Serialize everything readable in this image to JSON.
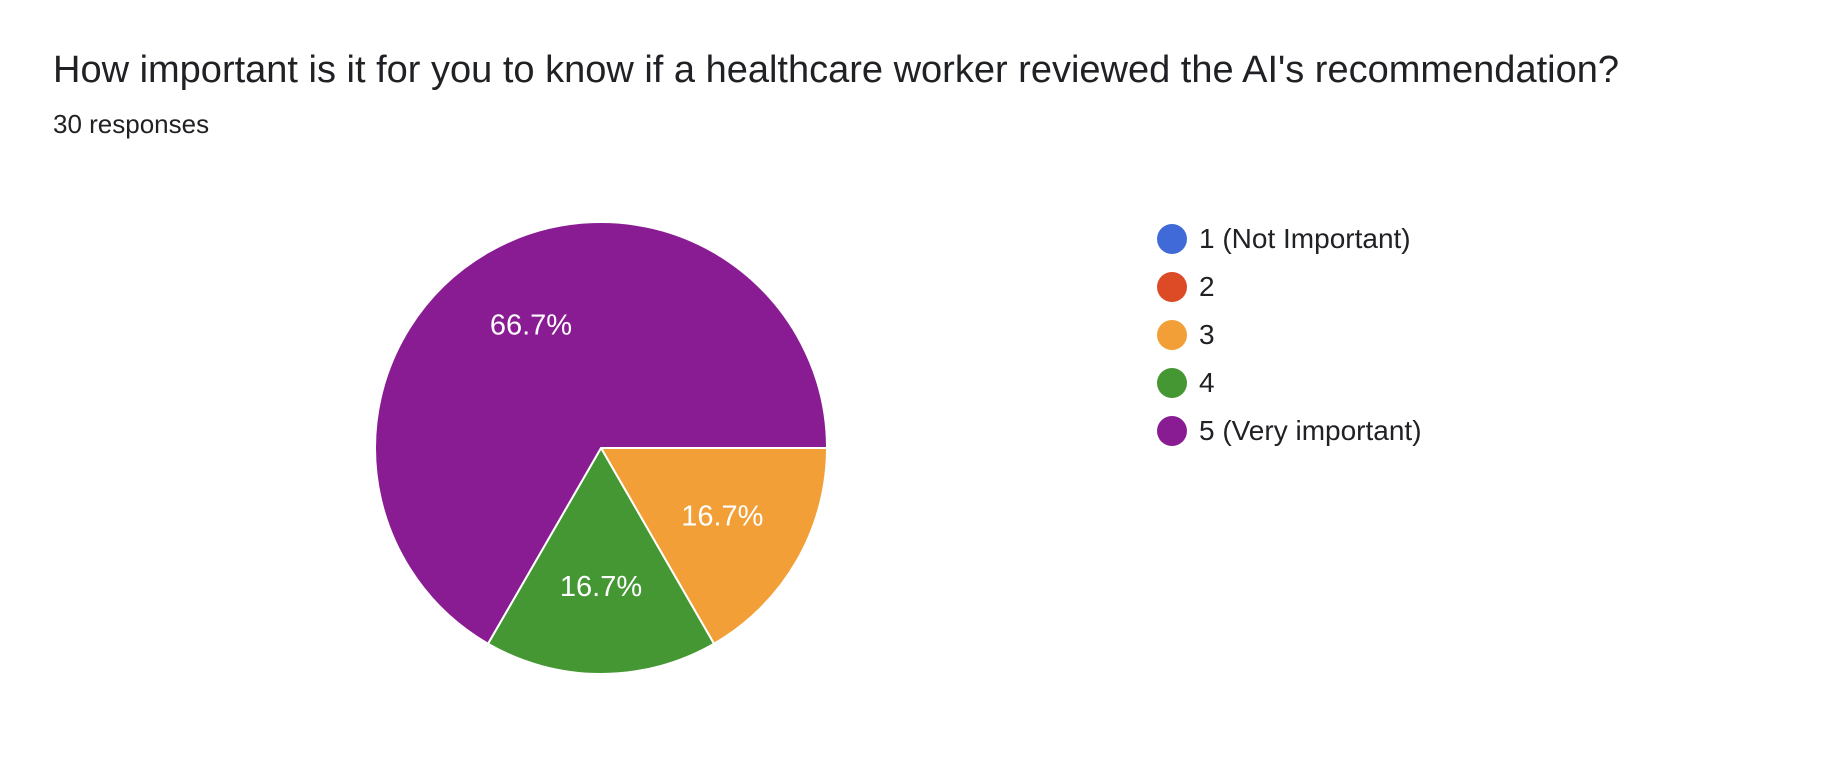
{
  "question": {
    "title": "How important is it for you to know if a healthcare worker reviewed the AI's recommendation?",
    "responses": "30 responses"
  },
  "chart_data": {
    "type": "pie",
    "title": "How important is it for you to know if a healthcare worker reviewed the AI's recommendation?",
    "total_responses": 30,
    "slices": [
      {
        "label": "1 (Not Important)",
        "value": 0,
        "percent_label": "",
        "color": "#3f6ad8"
      },
      {
        "label": "2",
        "value": 0,
        "percent_label": "",
        "color": "#dc4a26"
      },
      {
        "label": "3",
        "value": 5,
        "percent_label": "16.7%",
        "color": "#f29f38"
      },
      {
        "label": "4",
        "value": 5,
        "percent_label": "16.7%",
        "color": "#459734"
      },
      {
        "label": "5 (Very important)",
        "value": 20,
        "percent_label": "66.7%",
        "color": "#8a1c93"
      }
    ],
    "legend_position": "right"
  }
}
